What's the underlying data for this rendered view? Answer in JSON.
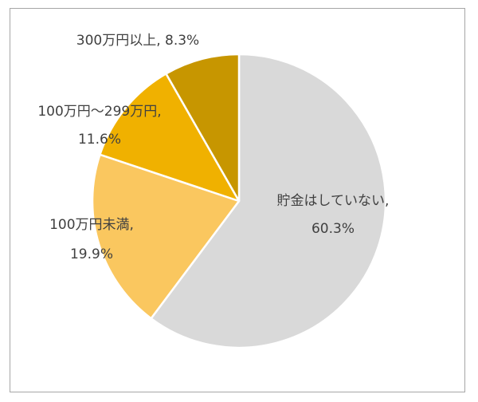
{
  "chart_data": {
    "type": "pie",
    "title": "",
    "slices": [
      {
        "name": "貯金はしていない",
        "value": 60.3,
        "label_line1": "貯金はしていない,",
        "label_line2": "60.3%",
        "color": "#d9d9d9"
      },
      {
        "name": "100万円未満",
        "value": 19.9,
        "label_line1": "100万円未満,",
        "label_line2": "19.9%",
        "color": "#fac75f"
      },
      {
        "name": "100万円～299万円",
        "value": 11.6,
        "label_line1": "100万円～299万円,",
        "label_line2": "11.6%",
        "color": "#f0b100"
      },
      {
        "name": "300万円以上",
        "value": 8.3,
        "label_line1": "300万円以上, 8.3%",
        "label_line2": "",
        "color": "#c79600"
      }
    ],
    "start_angle_deg": 0,
    "direction": "clockwise",
    "legend": "none",
    "label_position": "mixed"
  }
}
